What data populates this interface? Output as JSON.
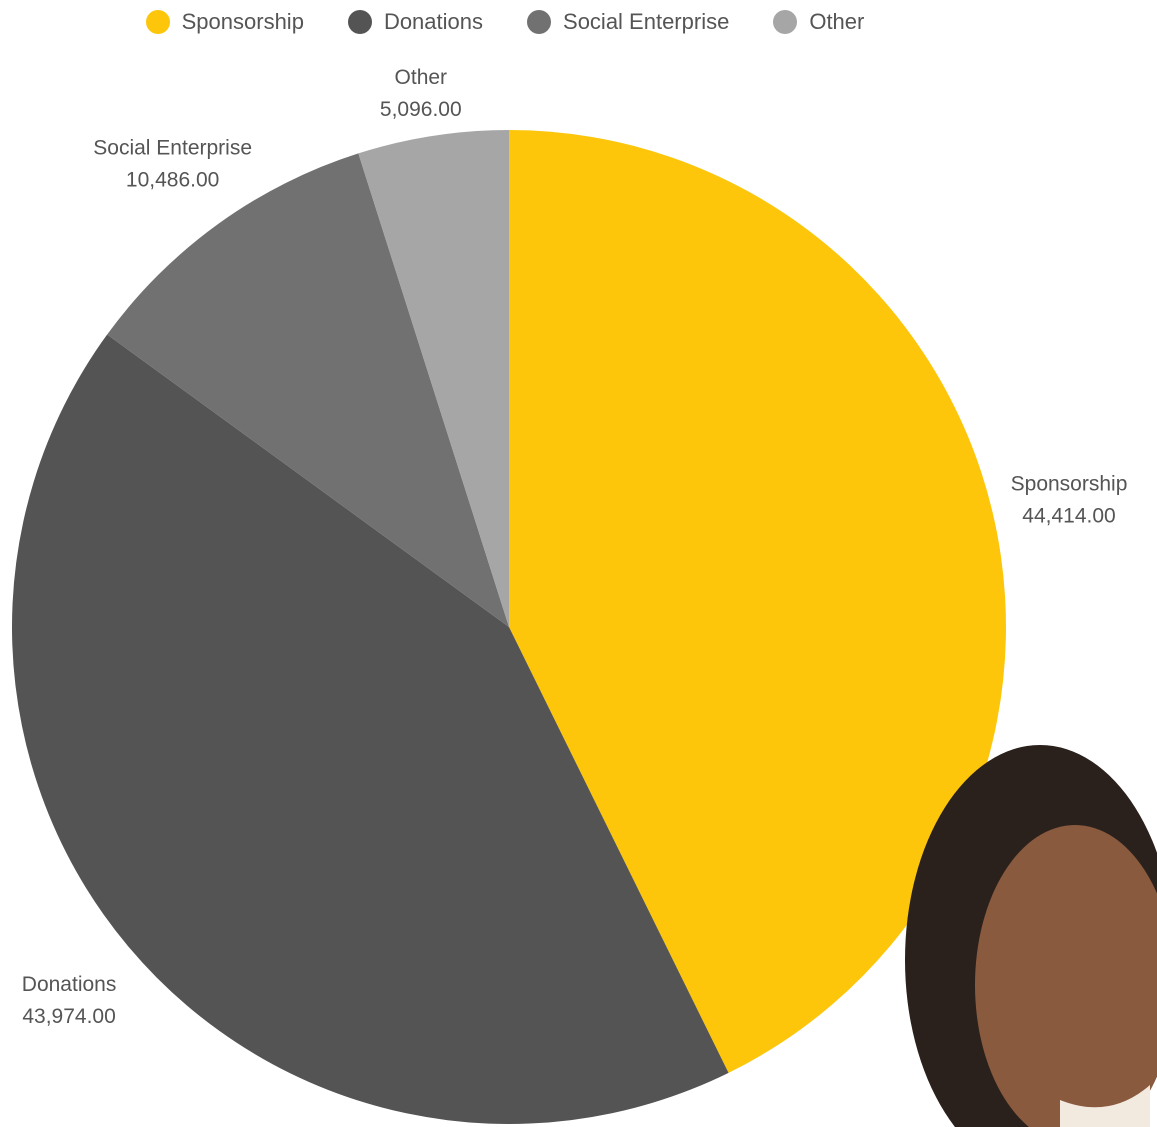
{
  "chart_data": {
    "type": "pie",
    "categories": [
      "Sponsorship",
      "Donations",
      "Social Enterprise",
      "Other"
    ],
    "values": [
      44414,
      43974,
      10486,
      5096
    ],
    "value_labels": [
      "44,414.00",
      "43,974.00",
      "10,486.00",
      "5,096.00"
    ],
    "colors": [
      "#fdc60b",
      "#545454",
      "#717171",
      "#a6a6a6"
    ],
    "legend": "top"
  }
}
